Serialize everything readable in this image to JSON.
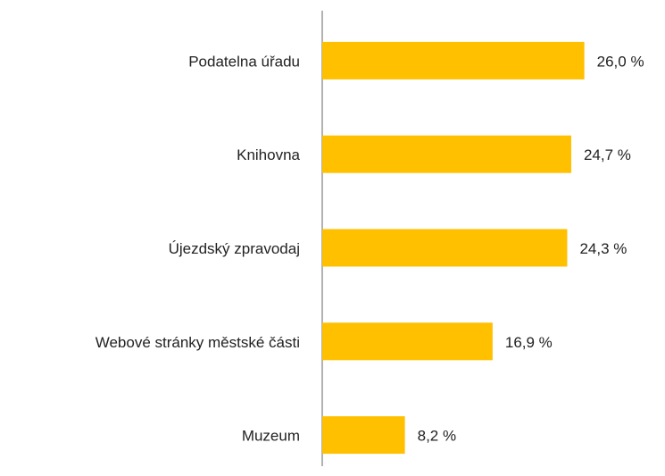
{
  "chart_data": {
    "type": "hbar",
    "categories": [
      "Podatelna úřadu",
      "Knihovna",
      "Újezdský zpravodaj",
      "Webové stránky městské části",
      "Muzeum"
    ],
    "values": [
      26.0,
      24.7,
      24.3,
      16.9,
      8.2
    ],
    "value_labels": [
      "26,0 %",
      "24,7 %",
      "24,3 %",
      "16,9 %",
      "8,2 %"
    ],
    "color": "#ffc000",
    "xlim": [
      0,
      34
    ]
  }
}
